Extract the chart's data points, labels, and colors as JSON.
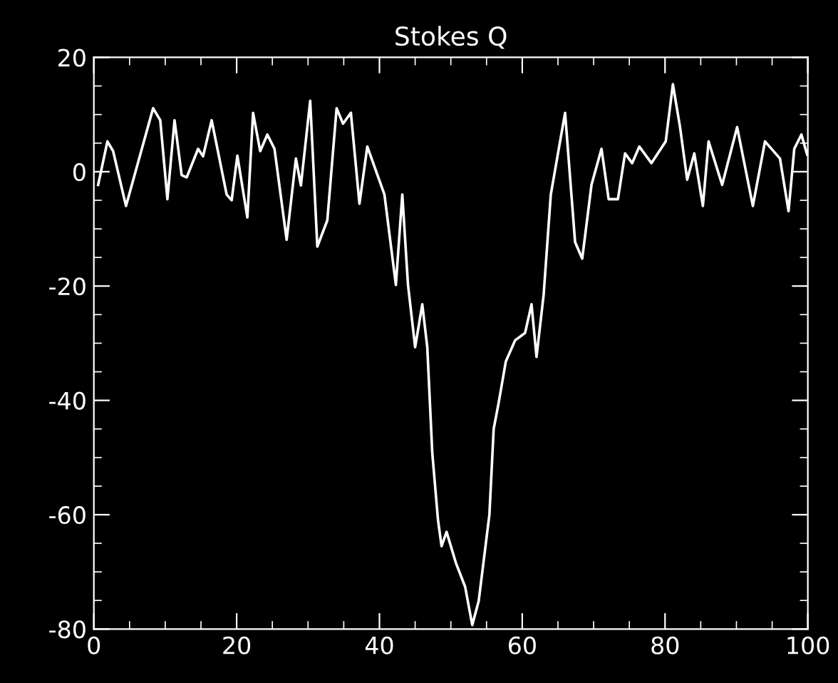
{
  "chart_data": {
    "type": "line",
    "title": "Stokes Q",
    "color": "#ffffff",
    "x": [
      0.6,
      1.9,
      2.7,
      4.5,
      8.3,
      9.3,
      10.3,
      11.3,
      12.3,
      13,
      14.6,
      15.3,
      16.5,
      18.6,
      19.3,
      20.1,
      21.5,
      22.3,
      23.3,
      24.3,
      25.3,
      27,
      28.3,
      29,
      30.3,
      31.3,
      32.7,
      34,
      34.9,
      36,
      37.2,
      38.3,
      40.7,
      42.3,
      43.2,
      44,
      45,
      46,
      46.7,
      47.4,
      48.2,
      48.7,
      49.4,
      50.7,
      52,
      53,
      53.9,
      55.4,
      56,
      56.7,
      57.7,
      59,
      60.4,
      61.3,
      62,
      63,
      64,
      66,
      67.4,
      68.4,
      69.7,
      71.1,
      72.1,
      73.4,
      74.4,
      75.4,
      76.4,
      78.1,
      80.1,
      81.1,
      82.1,
      83.1,
      84.1,
      85.3,
      86.1,
      88,
      90.1,
      92.3,
      94,
      96.1,
      97.3,
      98.1,
      99.1,
      99.9
    ],
    "values": [
      -2.3,
      5.3,
      3.6,
      -6,
      11.1,
      9,
      -4.8,
      9,
      -0.6,
      -1,
      4,
      2.7,
      9,
      -4,
      -5,
      2.8,
      -8,
      10.3,
      3.6,
      6.5,
      4,
      -11.9,
      2.3,
      -2.4,
      12.4,
      -13.1,
      -8.5,
      11.1,
      8.4,
      10.3,
      -5.6,
      4.4,
      -4,
      -19.8,
      -4,
      -19.8,
      -30.7,
      -23.2,
      -30.7,
      -49.2,
      -60.9,
      -65.5,
      -63,
      -68.4,
      -72.6,
      -79.3,
      -75.1,
      -60,
      -45,
      -40.4,
      -33.2,
      -29.5,
      -28.2,
      -23.2,
      -32.4,
      -21.5,
      -4,
      10.3,
      -12.3,
      -15.2,
      -2.3,
      4,
      -4.8,
      -4.8,
      3.2,
      1.5,
      4.4,
      1.5,
      5.3,
      15.3,
      7.8,
      -1.4,
      3.2,
      -6,
      5.3,
      -2.3,
      7.8,
      -6,
      5.3,
      2.3,
      -6.9,
      4,
      6.5,
      3
    ],
    "xlim": [
      0,
      100
    ],
    "xticks": [
      0,
      20,
      40,
      60,
      80,
      100
    ],
    "ylim": [
      -80,
      20
    ],
    "yticks": [
      -80,
      -60,
      -40,
      -20,
      0,
      20
    ],
    "grid": false,
    "legend": false,
    "marker": "none",
    "line_style": "solid"
  }
}
